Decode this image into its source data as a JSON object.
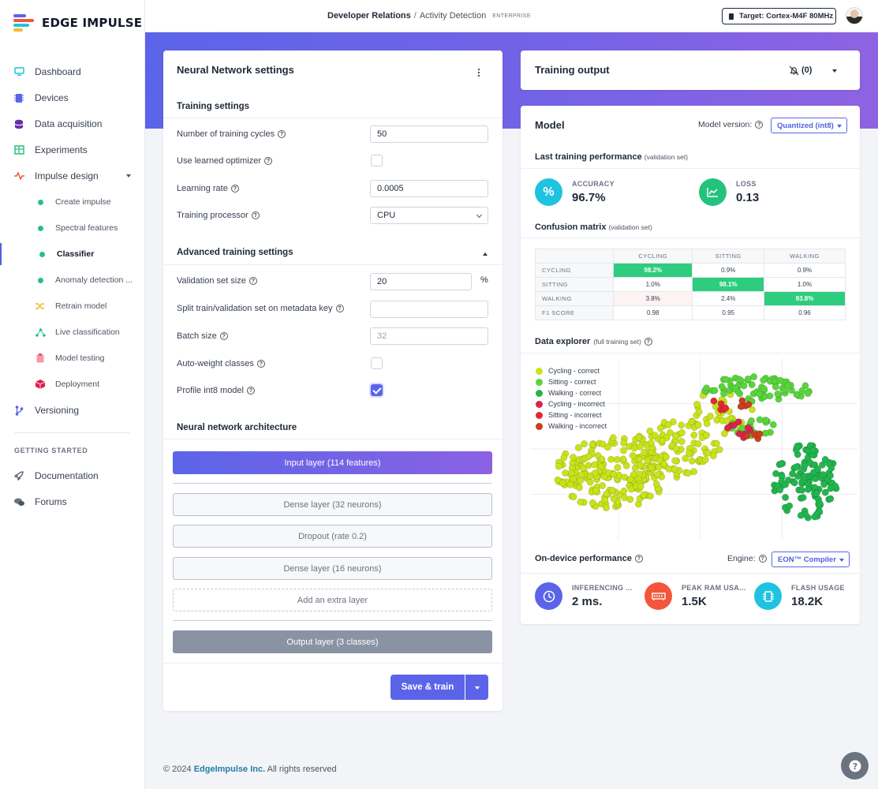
{
  "app": {
    "name": "EDGE IMPULSE"
  },
  "sidebar": {
    "items": [
      {
        "label": "Dashboard",
        "icon": "monitor-icon"
      },
      {
        "label": "Devices",
        "icon": "chip-icon"
      },
      {
        "label": "Data acquisition",
        "icon": "database-icon"
      },
      {
        "label": "Experiments",
        "icon": "table-icon"
      },
      {
        "label": "Impulse design",
        "icon": "pulse-icon"
      }
    ],
    "sub_items": [
      {
        "label": "Create impulse"
      },
      {
        "label": "Spectral features"
      },
      {
        "label": "Classifier"
      },
      {
        "label": "Anomaly detection ..."
      },
      {
        "label": "Retrain model",
        "icon": "shuffle-icon"
      },
      {
        "label": "Live classification",
        "icon": "nodes-icon"
      },
      {
        "label": "Model testing",
        "icon": "clipboard-icon"
      },
      {
        "label": "Deployment",
        "icon": "cube-icon"
      }
    ],
    "versioning": "Versioning",
    "section_label": "GETTING STARTED",
    "extra": [
      {
        "label": "Documentation",
        "icon": "rocket-icon"
      },
      {
        "label": "Forums",
        "icon": "chat-icon"
      }
    ]
  },
  "topbar": {
    "project": "Developer Relations",
    "separator": "/",
    "page": "Activity Detection",
    "badge": "ENTERPRISE",
    "target": "Target: Cortex-M4F 80MHz"
  },
  "nn": {
    "title": "Neural Network settings",
    "training_title": "Training settings",
    "fields": {
      "cycles_label": "Number of training cycles",
      "cycles_value": "50",
      "optimizer_label": "Use learned optimizer",
      "lr_label": "Learning rate",
      "lr_value": "0.0005",
      "processor_label": "Training processor",
      "processor_value": "CPU"
    },
    "advanced_title": "Advanced training settings",
    "advanced": {
      "val_label": "Validation set size",
      "val_value": "20",
      "val_unit": "%",
      "split_label": "Split train/validation set on metadata key",
      "split_value": "",
      "batch_label": "Batch size",
      "batch_value": "32",
      "autoweight_label": "Auto-weight classes",
      "int8_label": "Profile int8 model"
    },
    "arch_title": "Neural network architecture",
    "layers": {
      "input": "Input layer (114 features)",
      "dense1": "Dense layer (32 neurons)",
      "dropout": "Dropout (rate 0.2)",
      "dense2": "Dense layer (16 neurons)",
      "add": "Add an extra layer",
      "output": "Output layer (3 classes)"
    },
    "save_label": "Save & train"
  },
  "output": {
    "title": "Training output",
    "notif_count": "(0)"
  },
  "model": {
    "title": "Model",
    "version_label": "Model version:",
    "version_value": "Quantized (int8)",
    "perf_title": "Last training performance",
    "perf_note": "(validation set)",
    "accuracy_label": "ACCURACY",
    "accuracy_value": "96.7%",
    "loss_label": "LOSS",
    "loss_value": "0.13",
    "cm_title": "Confusion matrix",
    "cm_note": "(validation set)",
    "cm_headers": [
      "CYCLING",
      "SITTING",
      "WALKING"
    ],
    "cm_rows": [
      {
        "label": "CYCLING",
        "cells": [
          "98.2%",
          "0.9%",
          "0.9%"
        ]
      },
      {
        "label": "SITTING",
        "cells": [
          "1.0%",
          "98.1%",
          "1.0%"
        ]
      },
      {
        "label": "WALKING",
        "cells": [
          "3.8%",
          "2.4%",
          "93.8%"
        ]
      },
      {
        "label": "F1 SCORE",
        "cells": [
          "0.98",
          "0.95",
          "0.96"
        ]
      }
    ],
    "explorer_title": "Data explorer",
    "explorer_note": "(full training set)",
    "legend": [
      {
        "label": "Cycling - correct",
        "color": "#c8e31a"
      },
      {
        "label": "Sitting - correct",
        "color": "#5ad43c"
      },
      {
        "label": "Walking - correct",
        "color": "#22b54e"
      },
      {
        "label": "Cycling - incorrect",
        "color": "#d8244a"
      },
      {
        "label": "Sitting - incorrect",
        "color": "#e02a36"
      },
      {
        "label": "Walking - incorrect",
        "color": "#c9401e"
      }
    ],
    "ondevice_title": "On-device performance",
    "engine_label": "Engine:",
    "engine_value": "EON™ Compiler",
    "inferencing_label": "INFERENCING ...",
    "inferencing_value": "2 ms.",
    "ram_label": "PEAK RAM USA...",
    "ram_value": "1.5K",
    "flash_label": "FLASH USAGE",
    "flash_value": "18.2K"
  },
  "footer": {
    "copyright": "© 2024",
    "company": "EdgeImpulse Inc.",
    "rights": "All rights reserved"
  },
  "colors": {
    "accent": "#5b64e8",
    "green": "#2ecc7f",
    "teal": "#1fc3e0",
    "orange": "#f3563b"
  }
}
